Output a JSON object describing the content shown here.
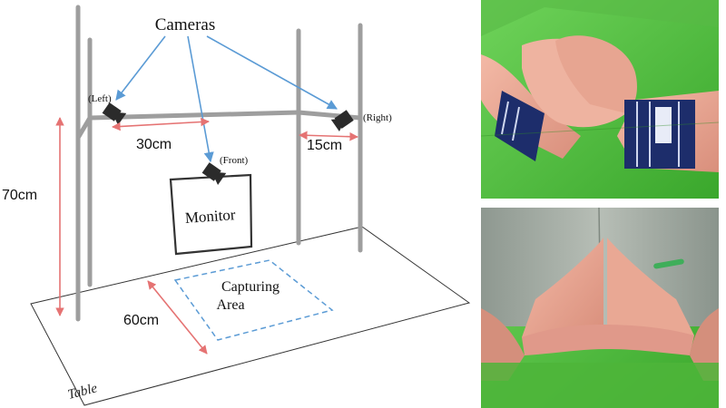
{
  "diagram": {
    "cameras_title": "Cameras",
    "camera_left": "(Left)",
    "camera_front": "(Front)",
    "camera_right": "(Right)",
    "dim_height": "70cm",
    "dim_left_front": "30cm",
    "dim_right": "15cm",
    "dim_depth": "60cm",
    "monitor": "Monitor",
    "capture_line1": "Capturing",
    "capture_line2": "Area",
    "table": "Table"
  },
  "colors": {
    "pole": "#9e9e9e",
    "arrow_blue": "#5b9bd5",
    "arrow_red": "#e57373",
    "camera": "#2b2b2b",
    "monitor_border": "#333333",
    "green_screen": "#4fbf3a"
  },
  "photos": [
    {
      "name": "hands-pressed-photo",
      "description_icon": "hands-palms-together-photo"
    },
    {
      "name": "hands-triangle-photo",
      "description_icon": "hands-triangle-photo"
    }
  ]
}
